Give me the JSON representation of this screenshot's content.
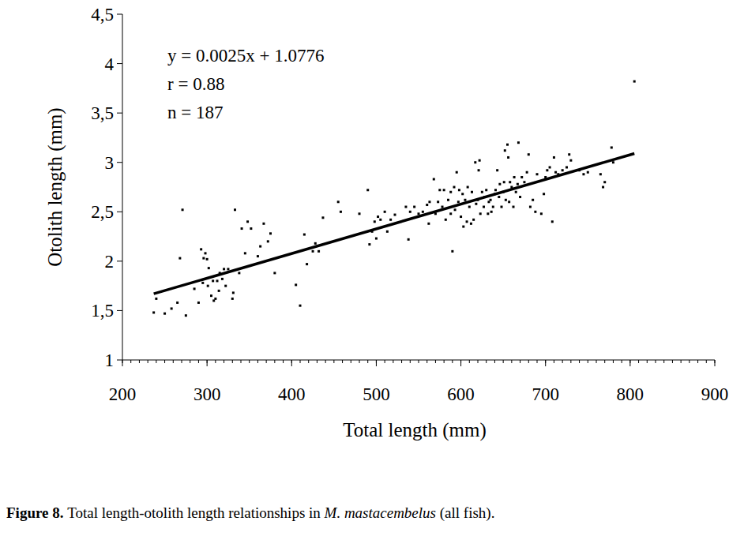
{
  "chart_data": {
    "type": "scatter",
    "x_label": "Total length (mm)",
    "y_label": "Otolith length (mm)",
    "xlim": [
      200,
      900
    ],
    "xticks": [
      200,
      300,
      400,
      500,
      600,
      700,
      800,
      900
    ],
    "ylim": [
      1,
      4.5
    ],
    "yticks": [
      {
        "value": 1,
        "label": "1"
      },
      {
        "value": 1.5,
        "label": "1,5"
      },
      {
        "value": 2,
        "label": "2"
      },
      {
        "value": 2.5,
        "label": "2,5"
      },
      {
        "value": 3,
        "label": "3"
      },
      {
        "value": 3.5,
        "label": "3,5"
      },
      {
        "value": 4,
        "label": "4"
      },
      {
        "value": 4.5,
        "label": "4,5"
      }
    ],
    "color": "#000000",
    "marker": "square",
    "grid": false,
    "annotations": [
      "y = 0.0025x + 1.0776",
      "r = 0.88",
      "n = 187"
    ],
    "trendline": {
      "x": [
        237,
        805
      ],
      "values": [
        1.67,
        3.09
      ]
    },
    "caption": {
      "label": "Figure 8.",
      "text_before": "Total length-otolith length relationships in ",
      "species": "M. mastacembelus",
      "text_after": " (all fish)."
    },
    "x": [
      237,
      240,
      250,
      258,
      265,
      268,
      271,
      275,
      285,
      290,
      293,
      295,
      296,
      298,
      300,
      301,
      302,
      305,
      307,
      308,
      310,
      312,
      314,
      315,
      318,
      320,
      322,
      325,
      330,
      331,
      333,
      338,
      341,
      345,
      348,
      352,
      360,
      363,
      367,
      372,
      375,
      380,
      405,
      410,
      415,
      418,
      425,
      428,
      432,
      437,
      455,
      458,
      480,
      490,
      492,
      495,
      498,
      500,
      502,
      505,
      510,
      513,
      517,
      522,
      535,
      538,
      540,
      545,
      550,
      555,
      560,
      562,
      563,
      568,
      570,
      573,
      575,
      578,
      580,
      582,
      585,
      588,
      588,
      590,
      592,
      593,
      595,
      597,
      598,
      600,
      602,
      603,
      605,
      607,
      608,
      610,
      612,
      613,
      615,
      617,
      618,
      620,
      621,
      622,
      623,
      625,
      627,
      628,
      630,
      632,
      633,
      635,
      636,
      638,
      640,
      641,
      643,
      645,
      646,
      648,
      650,
      651,
      652,
      653,
      655,
      656,
      657,
      658,
      660,
      662,
      663,
      665,
      667,
      668,
      670,
      672,
      675,
      678,
      680,
      682,
      685,
      688,
      690,
      695,
      698,
      700,
      702,
      705,
      708,
      710,
      712,
      715,
      720,
      725,
      728,
      730,
      740,
      745,
      750,
      765,
      768,
      770,
      778,
      780,
      805
    ],
    "values": [
      1.48,
      1.62,
      1.47,
      1.52,
      1.58,
      2.03,
      2.52,
      1.45,
      1.72,
      1.58,
      2.12,
      1.78,
      2.03,
      2.08,
      2.02,
      1.75,
      1.93,
      1.65,
      1.8,
      1.6,
      1.62,
      1.8,
      1.7,
      1.88,
      1.82,
      1.92,
      1.75,
      1.92,
      1.62,
      1.68,
      2.52,
      1.88,
      2.33,
      2.08,
      2.4,
      2.33,
      2.05,
      2.15,
      2.38,
      2.2,
      2.28,
      1.88,
      1.76,
      1.55,
      2.27,
      1.97,
      2.1,
      2.18,
      2.1,
      2.44,
      2.6,
      2.5,
      2.48,
      2.72,
      2.17,
      2.3,
      2.4,
      2.23,
      2.45,
      2.42,
      2.5,
      2.3,
      2.42,
      2.47,
      2.55,
      2.22,
      2.5,
      2.55,
      2.48,
      2.5,
      2.57,
      2.38,
      2.6,
      2.83,
      2.48,
      2.6,
      2.72,
      2.55,
      2.72,
      2.42,
      2.62,
      2.48,
      2.7,
      2.1,
      2.75,
      2.52,
      2.9,
      2.6,
      2.72,
      2.45,
      2.68,
      2.35,
      2.62,
      2.4,
      2.75,
      2.55,
      2.38,
      2.7,
      2.42,
      3.0,
      2.58,
      2.62,
      2.92,
      3.02,
      2.48,
      2.7,
      2.55,
      2.65,
      2.72,
      2.48,
      2.6,
      2.62,
      2.5,
      2.55,
      2.68,
      2.72,
      2.92,
      2.65,
      2.78,
      2.55,
      2.7,
      2.8,
      3.12,
      2.62,
      3.18,
      3.05,
      2.6,
      2.8,
      2.75,
      2.55,
      2.85,
      2.7,
      2.78,
      3.2,
      2.65,
      2.85,
      2.8,
      2.9,
      3.08,
      2.55,
      2.62,
      2.5,
      2.88,
      2.48,
      2.68,
      2.85,
      2.92,
      2.95,
      2.4,
      3.05,
      2.9,
      2.88,
      2.92,
      2.95,
      3.08,
      3.02,
      2.92,
      2.88,
      2.9,
      2.88,
      2.75,
      2.8,
      3.15,
      3.0,
      3.82
    ]
  }
}
